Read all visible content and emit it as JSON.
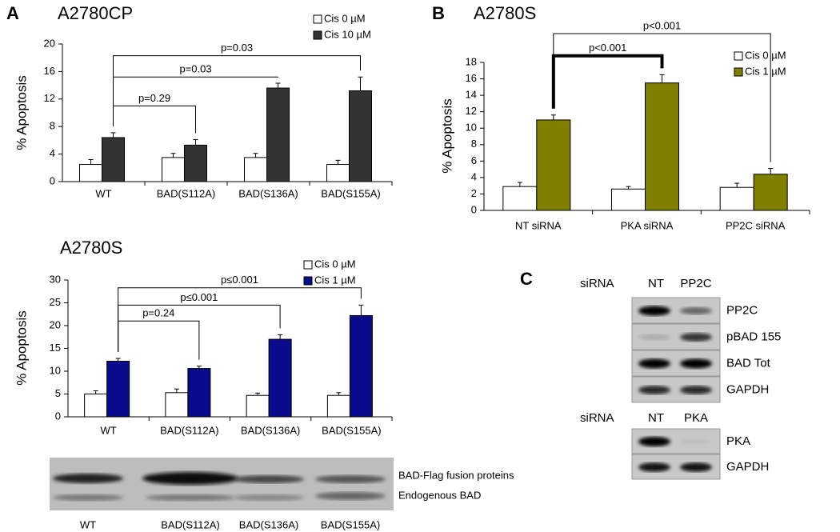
{
  "panels": [
    "A",
    "B",
    "C"
  ],
  "chart_data": [
    {
      "type": "bar",
      "title": "A2780CP",
      "y_label": "% Apoptosis",
      "categories": [
        "WT",
        "BAD(S112A)",
        "BAD(S136A)",
        "BAD(S155A)"
      ],
      "series": [
        {
          "name": "Cis 0 µM",
          "color": "#ffffff",
          "values": [
            2.5,
            3.5,
            3.5,
            2.5
          ],
          "errors": [
            0.7,
            0.6,
            0.6,
            0.6
          ]
        },
        {
          "name": "Cis 10 µM",
          "color": "#333333",
          "values": [
            6.4,
            5.3,
            13.6,
            13.2
          ],
          "errors": [
            0.7,
            0.8,
            0.7,
            2.0
          ]
        }
      ],
      "ylim": [
        0,
        20
      ],
      "yticks": [
        0,
        4,
        8,
        12,
        16,
        20
      ],
      "annotations": [
        "p=0.29",
        "p=0.03",
        "p=0.03"
      ]
    },
    {
      "type": "bar",
      "title": "A2780S",
      "y_label": "% Apoptosis",
      "categories": [
        "WT",
        "BAD(S112A)",
        "BAD(S136A)",
        "BAD(S155A)"
      ],
      "series": [
        {
          "name": "Cis 0 µM",
          "color": "#ffffff",
          "values": [
            5.0,
            5.3,
            4.7,
            4.7
          ],
          "errors": [
            0.7,
            0.8,
            0.5,
            0.6
          ]
        },
        {
          "name": "Cis 1 µM",
          "color": "#0a0a8c",
          "values": [
            12.2,
            10.6,
            17.0,
            22.2
          ],
          "errors": [
            0.6,
            0.5,
            1.0,
            2.3
          ]
        }
      ],
      "ylim": [
        0,
        30
      ],
      "yticks": [
        0,
        5,
        10,
        15,
        20,
        25,
        30
      ],
      "annotations": [
        "p=0.24",
        "p≤0.001",
        "p≤0.001"
      ]
    },
    {
      "type": "bar",
      "title": "A2780S",
      "y_label": "% Apoptosis",
      "categories": [
        "NT siRNA",
        "PKA  siRNA",
        "PP2C siRNA"
      ],
      "series": [
        {
          "name": "Cis 0 µM",
          "color": "#ffffff",
          "values": [
            2.9,
            2.6,
            2.8
          ],
          "errors": [
            0.5,
            0.3,
            0.5
          ]
        },
        {
          "name": "Cis 1 µM",
          "color": "#808000",
          "values": [
            11.0,
            15.5,
            4.4
          ],
          "errors": [
            0.6,
            1.0,
            0.7
          ]
        }
      ],
      "ylim": [
        0,
        18
      ],
      "yticks": [
        0,
        2,
        4,
        6,
        8,
        10,
        12,
        14,
        16,
        18
      ],
      "annotations": [
        "p<0.001",
        "p<0.001"
      ]
    }
  ],
  "blots": {
    "lower": {
      "lanes": [
        "WT",
        "BAD(S112A)",
        "BAD(S136A)",
        "BAD(S155A)"
      ],
      "bands": [
        "BAD-Flag fusion proteins",
        "Endogenous BAD"
      ]
    },
    "c": [
      {
        "header": "siRNA",
        "lanes": [
          "NT",
          "PP2C"
        ],
        "rows": [
          "PP2C",
          "pBAD 155",
          "BAD Tot",
          "GAPDH"
        ]
      },
      {
        "header": "siRNA",
        "lanes": [
          "NT",
          "PKA"
        ],
        "rows": [
          "PKA",
          "GAPDH"
        ]
      }
    ]
  }
}
